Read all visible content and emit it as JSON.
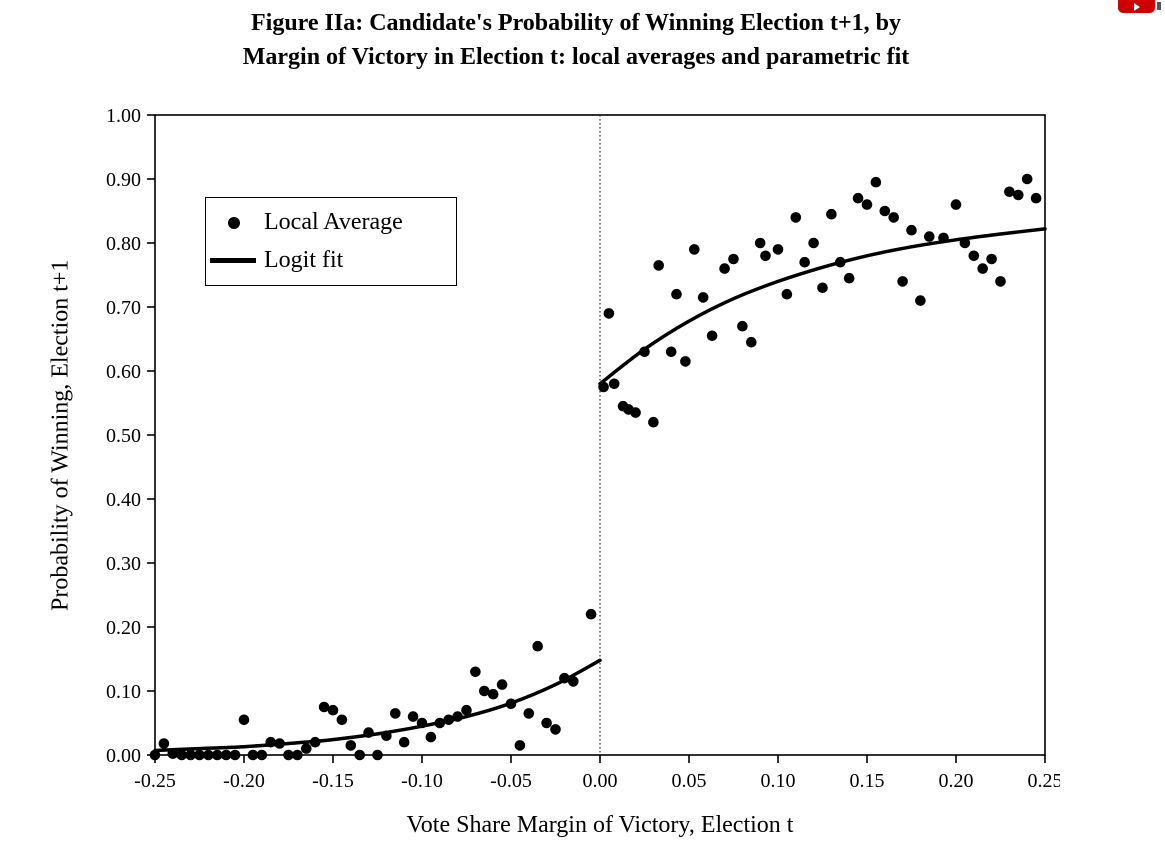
{
  "ui": {
    "badge_color": "#cc0000"
  },
  "figure": {
    "title_line1": "Figure IIa: Candidate's Probability of Winning Election t+1, by",
    "title_line2": "Margin of Victory in Election t: local averages and parametric fit",
    "x_axis_label": "Vote Share Margin of Victory, Election t",
    "y_axis_label": "Probability of Winning, Election t+1",
    "legend": {
      "local_average": "Local Average",
      "logit_fit": "Logit fit"
    }
  },
  "chart_data": {
    "type": "scatter",
    "title": "Figure IIa: Candidate's Probability of Winning Election t+1, by Margin of Victory in Election t: local averages and parametric fit",
    "xlabel": "Vote Share Margin of Victory, Election t",
    "ylabel": "Probability of Winning, Election t+1",
    "xlim": [
      -0.25,
      0.25
    ],
    "ylim": [
      0,
      1
    ],
    "grid": false,
    "legend_position": "upper-left",
    "reference_line_x": 0,
    "xticks": [
      -0.25,
      -0.2,
      -0.15,
      -0.1,
      -0.05,
      0,
      0.05,
      0.1,
      0.15,
      0.2,
      0.25
    ],
    "x_tick_labels": [
      "-0.25",
      "-0.20",
      "-0.15",
      "-0.10",
      "-0.05",
      "0.00",
      "0.05",
      "0.10",
      "0.15",
      "0.20",
      "0.25"
    ],
    "yticks": [
      0,
      0.1,
      0.2,
      0.3,
      0.4,
      0.5,
      0.6,
      0.7,
      0.8,
      0.9,
      1.0
    ],
    "y_tick_labels": [
      "0.00",
      "0.10",
      "0.20",
      "0.30",
      "0.40",
      "0.50",
      "0.60",
      "0.70",
      "0.80",
      "0.90",
      "1.00"
    ],
    "colors": {
      "points": "#000000",
      "line": "#000000"
    },
    "series": [
      {
        "name": "Local Average",
        "type": "scatter",
        "color": "#000000",
        "points": [
          [
            -0.25,
            0.0
          ],
          [
            -0.245,
            0.018
          ],
          [
            -0.24,
            0.002
          ],
          [
            -0.235,
            0.0
          ],
          [
            -0.23,
            0.0
          ],
          [
            -0.225,
            0.0
          ],
          [
            -0.22,
            0.0
          ],
          [
            -0.215,
            0.0
          ],
          [
            -0.21,
            0.0
          ],
          [
            -0.205,
            0.0
          ],
          [
            -0.2,
            0.055
          ],
          [
            -0.195,
            0.0
          ],
          [
            -0.19,
            0.0
          ],
          [
            -0.185,
            0.02
          ],
          [
            -0.18,
            0.018
          ],
          [
            -0.175,
            0.0
          ],
          [
            -0.17,
            0.0
          ],
          [
            -0.165,
            0.01
          ],
          [
            -0.16,
            0.02
          ],
          [
            -0.155,
            0.075
          ],
          [
            -0.15,
            0.07
          ],
          [
            -0.145,
            0.055
          ],
          [
            -0.14,
            0.015
          ],
          [
            -0.135,
            0.0
          ],
          [
            -0.13,
            0.035
          ],
          [
            -0.125,
            0.0
          ],
          [
            -0.12,
            0.03
          ],
          [
            -0.115,
            0.065
          ],
          [
            -0.11,
            0.02
          ],
          [
            -0.105,
            0.06
          ],
          [
            -0.1,
            0.05
          ],
          [
            -0.095,
            0.028
          ],
          [
            -0.09,
            0.05
          ],
          [
            -0.085,
            0.055
          ],
          [
            -0.08,
            0.06
          ],
          [
            -0.075,
            0.07
          ],
          [
            -0.07,
            0.13
          ],
          [
            -0.065,
            0.1
          ],
          [
            -0.06,
            0.095
          ],
          [
            -0.055,
            0.11
          ],
          [
            -0.05,
            0.08
          ],
          [
            -0.045,
            0.015
          ],
          [
            -0.04,
            0.065
          ],
          [
            -0.035,
            0.17
          ],
          [
            -0.03,
            0.05
          ],
          [
            -0.025,
            0.04
          ],
          [
            -0.02,
            0.12
          ],
          [
            -0.015,
            0.115
          ],
          [
            -0.005,
            0.22
          ],
          [
            0.002,
            0.575
          ],
          [
            0.005,
            0.69
          ],
          [
            0.008,
            0.58
          ],
          [
            0.013,
            0.545
          ],
          [
            0.016,
            0.54
          ],
          [
            0.02,
            0.535
          ],
          [
            0.025,
            0.63
          ],
          [
            0.03,
            0.52
          ],
          [
            0.033,
            0.765
          ],
          [
            0.04,
            0.63
          ],
          [
            0.043,
            0.72
          ],
          [
            0.048,
            0.615
          ],
          [
            0.053,
            0.79
          ],
          [
            0.058,
            0.715
          ],
          [
            0.063,
            0.655
          ],
          [
            0.07,
            0.76
          ],
          [
            0.075,
            0.775
          ],
          [
            0.08,
            0.67
          ],
          [
            0.085,
            0.645
          ],
          [
            0.09,
            0.8
          ],
          [
            0.093,
            0.78
          ],
          [
            0.1,
            0.79
          ],
          [
            0.105,
            0.72
          ],
          [
            0.11,
            0.84
          ],
          [
            0.115,
            0.77
          ],
          [
            0.12,
            0.8
          ],
          [
            0.125,
            0.73
          ],
          [
            0.13,
            0.845
          ],
          [
            0.135,
            0.77
          ],
          [
            0.14,
            0.745
          ],
          [
            0.145,
            0.87
          ],
          [
            0.15,
            0.86
          ],
          [
            0.155,
            0.895
          ],
          [
            0.16,
            0.85
          ],
          [
            0.165,
            0.84
          ],
          [
            0.17,
            0.74
          ],
          [
            0.175,
            0.82
          ],
          [
            0.18,
            0.71
          ],
          [
            0.185,
            0.81
          ],
          [
            0.193,
            0.808
          ],
          [
            0.2,
            0.86
          ],
          [
            0.205,
            0.8
          ],
          [
            0.21,
            0.78
          ],
          [
            0.215,
            0.76
          ],
          [
            0.22,
            0.775
          ],
          [
            0.225,
            0.74
          ],
          [
            0.23,
            0.88
          ],
          [
            0.235,
            0.875
          ],
          [
            0.24,
            0.9
          ],
          [
            0.245,
            0.87
          ]
        ]
      },
      {
        "name": "Logit fit (left of cutoff)",
        "type": "line",
        "color": "#000000",
        "points": [
          [
            -0.25,
            0.007
          ],
          [
            -0.225,
            0.01
          ],
          [
            -0.2,
            0.013
          ],
          [
            -0.175,
            0.018
          ],
          [
            -0.15,
            0.024
          ],
          [
            -0.125,
            0.033
          ],
          [
            -0.1,
            0.045
          ],
          [
            -0.075,
            0.06
          ],
          [
            -0.05,
            0.081
          ],
          [
            -0.025,
            0.11
          ],
          [
            0.0,
            0.148
          ]
        ]
      },
      {
        "name": "Logit fit (right of cutoff)",
        "type": "line",
        "color": "#000000",
        "points": [
          [
            0.0,
            0.58
          ],
          [
            0.025,
            0.634
          ],
          [
            0.05,
            0.678
          ],
          [
            0.075,
            0.713
          ],
          [
            0.1,
            0.74
          ],
          [
            0.125,
            0.762
          ],
          [
            0.15,
            0.78
          ],
          [
            0.175,
            0.794
          ],
          [
            0.2,
            0.805
          ],
          [
            0.225,
            0.814
          ],
          [
            0.25,
            0.822
          ]
        ]
      }
    ]
  }
}
